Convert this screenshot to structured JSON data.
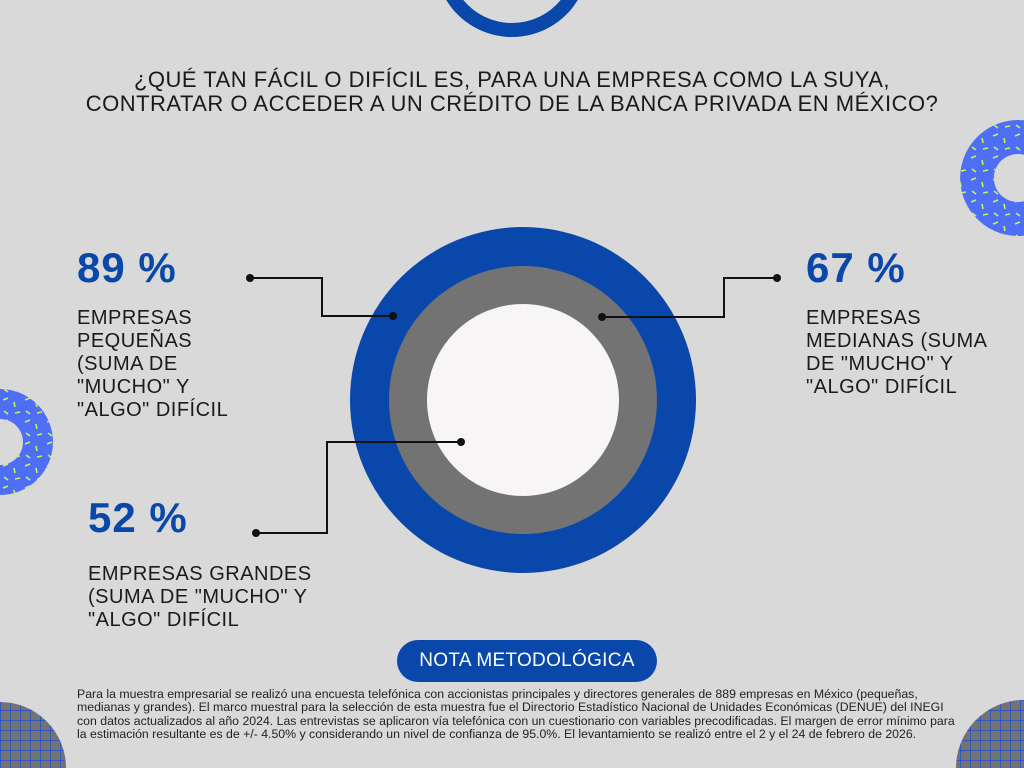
{
  "title": "¿Qué tan fácil o difícil es, para una empresa como la suya, contratar o acceder a un crédito de la banca privada en México?",
  "colors": {
    "background": "#d9d9d9",
    "accent_blue": "#0a47ab",
    "gray": "#737373",
    "center": "#f7f5f5",
    "pattern_blue": "#4f6ef7",
    "pattern_dots": "#c7f25a"
  },
  "chart_data": {
    "type": "concentric-circles",
    "series": [
      {
        "name": "Empresas pequeñas (suma de \"mucho\" y \"algo\" difícil",
        "value": 89,
        "label": "89 %",
        "color": "#0a47ab"
      },
      {
        "name": "Empresas medianas (suma de \"mucho\" y \"algo\" difícil",
        "value": 67,
        "label": "67 %",
        "color": "#737373"
      },
      {
        "name": "Empresas grandes (suma de \"mucho\" y \"algo\" difícil",
        "value": 52,
        "label": "52 %",
        "color": "#f7f5f5"
      }
    ]
  },
  "labels": {
    "small": [
      "Empresas",
      "pequeñas",
      "(suma de",
      "\"mucho\" y",
      "\"algo\" difícil"
    ],
    "medium": [
      "Empresas",
      "medianas (suma",
      "de \"mucho\" y",
      "\"algo\" difícil"
    ],
    "large": [
      "Empresas grandes",
      "(suma de \"mucho\" y",
      "\"algo\" difícil"
    ]
  },
  "nota": {
    "button": "NOTA METODOLÓGICA",
    "text": "Para la muestra empresarial se realizó una encuesta telefónica con accionistas principales y directores generales de 889 empresas en México (pequeñas, medianas y grandes). El marco muestral para la selección de esta muestra fue el Directorio Estadístico Nacional de Unidades Económicas (DENUE) del INEGI con datos actualizados al año 2024. Las entrevistas se aplicaron vía telefónica con un cuestionario con variables precodificadas. El margen de error mínimo para la estimación resultante es de +/- 4.50% y considerando un nivel de confianza de 95.0%. El levantamiento se realizó entre el 2 y el 24 de febrero de 2026."
  }
}
